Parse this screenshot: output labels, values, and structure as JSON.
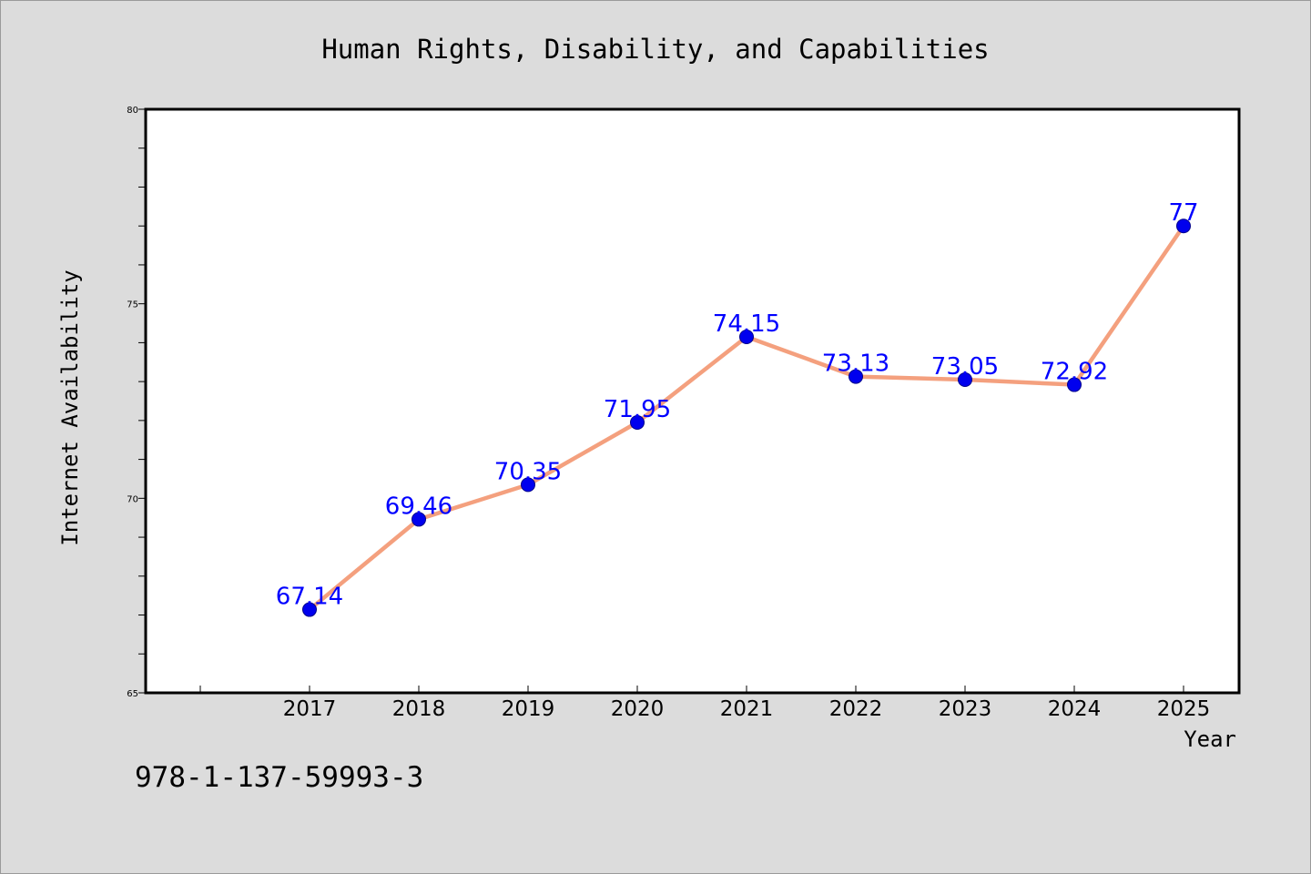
{
  "chart_data": {
    "type": "line",
    "title": "Human Rights, Disability, and Capabilities",
    "xlabel": "Year",
    "ylabel": "Internet Availability",
    "categories": [
      "2017",
      "2018",
      "2019",
      "2020",
      "2021",
      "2022",
      "2023",
      "2024",
      "2025"
    ],
    "series": [
      {
        "values": [
          67.14,
          69.46,
          70.35,
          71.95,
          74.15,
          73.13,
          73.05,
          72.92,
          77
        ],
        "labels": [
          "67.14",
          "69.46",
          "70.35",
          "71.95",
          "74.15",
          "73.13",
          "73.05",
          "72.92",
          "77"
        ],
        "line_color": "#f4a07e",
        "marker_color": "#0000ee"
      }
    ],
    "ylim": [
      65,
      80
    ],
    "yticks": [
      "65",
      "70",
      "75",
      "80"
    ],
    "grid": false,
    "legend": "none",
    "plot_background": "#ffffff",
    "figure_background": "#dcdcdc"
  },
  "footnote": "978-1-137-59993-3"
}
